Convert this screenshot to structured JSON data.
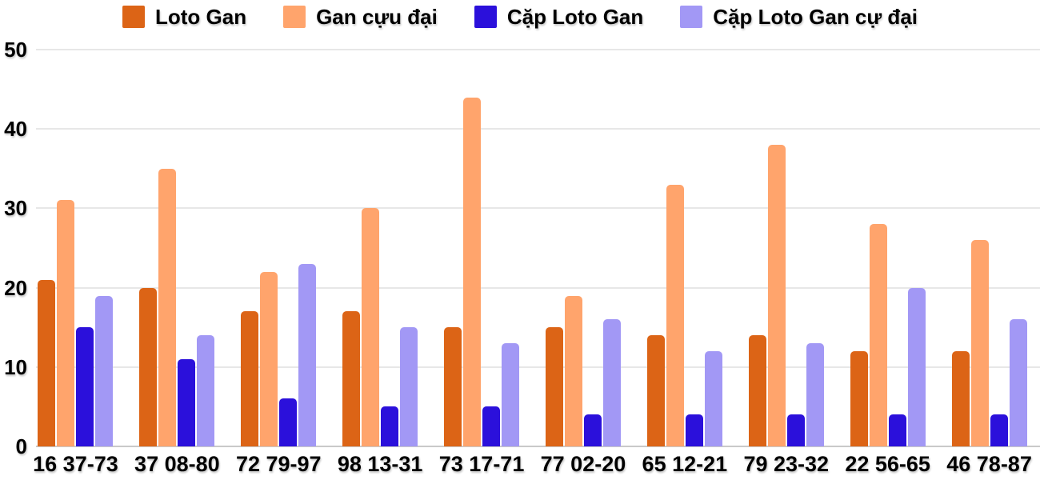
{
  "chart_data": {
    "type": "bar",
    "title": "",
    "xlabel": "",
    "ylabel": "",
    "categories": [
      "16 37-73",
      "37 08-80",
      "72 79-97",
      "98 13-31",
      "73 17-71",
      "77 02-20",
      "65 12-21",
      "79 23-32",
      "22 56-65",
      "46 78-87"
    ],
    "series": [
      {
        "name": "Loto Gan",
        "color": "#DC6416",
        "values": [
          21,
          20,
          17,
          17,
          15,
          15,
          14,
          14,
          12,
          12
        ]
      },
      {
        "name": "Gan cựu đại",
        "color": "#FFA46C",
        "values": [
          31,
          35,
          22,
          30,
          44,
          19,
          33,
          38,
          28,
          26
        ]
      },
      {
        "name": "Cặp Loto Gan",
        "color": "#2B10DB",
        "values": [
          15,
          11,
          6,
          5,
          5,
          4,
          4,
          4,
          4,
          4
        ]
      },
      {
        "name": "Cặp Loto Gan cự đại",
        "color": "#A298F5",
        "values": [
          19,
          14,
          23,
          15,
          13,
          16,
          12,
          13,
          20,
          16
        ]
      }
    ],
    "ylim": [
      0,
      50
    ],
    "yticks": [
      0,
      10,
      20,
      30,
      40,
      50
    ],
    "grid": true,
    "legend_position": "top",
    "colors": {
      "text": "#000000",
      "gridline": "#e7e7e7",
      "axis_line": "#c9c9c9",
      "background": "#ffffff"
    }
  }
}
